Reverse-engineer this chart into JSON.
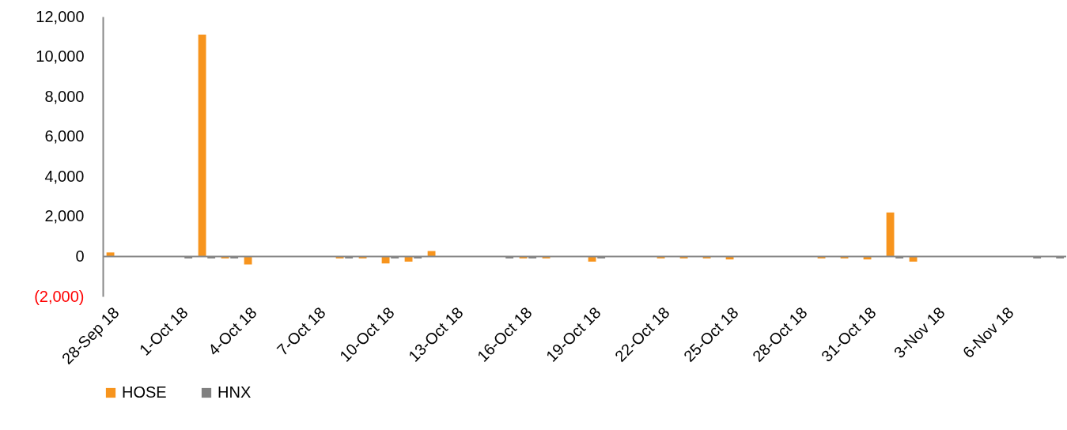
{
  "chart_data": {
    "type": "bar",
    "categories": [
      "28-Sep 18",
      null,
      null,
      "1-Oct 18",
      null,
      null,
      "4-Oct 18",
      null,
      null,
      "7-Oct 18",
      null,
      null,
      "10-Oct 18",
      null,
      null,
      "13-Oct 18",
      null,
      null,
      "16-Oct 18",
      null,
      null,
      "19-Oct 18",
      null,
      null,
      "22-Oct 18",
      null,
      null,
      "25-Oct 18",
      null,
      null,
      "28-Oct 18",
      null,
      null,
      "31-Oct 18",
      null,
      null,
      "3-Nov 18",
      null,
      null,
      "6-Nov 18",
      null,
      null
    ],
    "series": [
      {
        "name": "HOSE",
        "color": "#f7941d",
        "values": [
          200,
          null,
          null,
          0,
          11100,
          -100,
          -400,
          0,
          null,
          null,
          -100,
          -100,
          -350,
          -260,
          270,
          null,
          null,
          0,
          -100,
          -100,
          0,
          -260,
          null,
          null,
          -100,
          -100,
          -100,
          -150,
          0,
          null,
          null,
          -100,
          -100,
          -150,
          2200,
          -260,
          null,
          null,
          0,
          0,
          0,
          0
        ]
      },
      {
        "name": "HNX",
        "color": "#808080",
        "values": [
          0,
          null,
          null,
          -100,
          -100,
          -100,
          0,
          0,
          null,
          null,
          -100,
          0,
          -100,
          -100,
          0,
          null,
          null,
          -100,
          -100,
          0,
          0,
          -100,
          null,
          null,
          0,
          0,
          0,
          0,
          0,
          null,
          null,
          0,
          0,
          0,
          -100,
          0,
          null,
          null,
          0,
          0,
          -100,
          -100
        ]
      }
    ],
    "ylim": [
      -2000,
      12000
    ],
    "yticks": [
      {
        "value": -2000,
        "label": "(2,000)"
      },
      0,
      {
        "value": 2000,
        "label": "2,000"
      },
      {
        "value": 4000,
        "label": "4,000"
      },
      {
        "value": 6000,
        "label": "6,000"
      },
      {
        "value": 8000,
        "label": "8,000"
      },
      {
        "value": 10000,
        "label": "10,000"
      },
      {
        "value": 12000,
        "label": "12,000"
      }
    ],
    "legend": "bottom"
  }
}
